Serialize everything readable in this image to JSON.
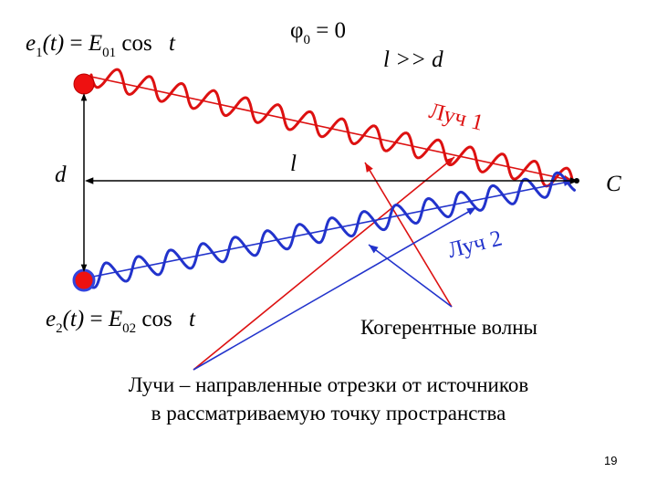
{
  "colors": {
    "red": "#dd1111",
    "blue": "#2233cc",
    "black": "#000000"
  },
  "equations": {
    "e1": {
      "lhs": "e",
      "lhs_sub": "1",
      "arg": "(t)",
      "eq": "=",
      "amp": "E",
      "amp_sub": "01",
      "func": "cos",
      "var": "t"
    },
    "e2": {
      "lhs": "e",
      "lhs_sub": "2",
      "arg": "(t)",
      "eq": "=",
      "amp": "E",
      "amp_sub": "02",
      "func": "cos",
      "var": "t"
    },
    "phase": {
      "sym": "φ",
      "sub": "0",
      "rest": "= 0"
    },
    "cond": "l >> d"
  },
  "labels": {
    "d": "d",
    "l": "l",
    "C": "C",
    "ray1": "Луч 1",
    "ray2": "Луч 2",
    "coherent": "Когерентные волны",
    "definition_line1": "Лучи – направленные отрезки от источников",
    "definition_line2": "в рассматриваемую точку пространства"
  },
  "page_number": "19"
}
